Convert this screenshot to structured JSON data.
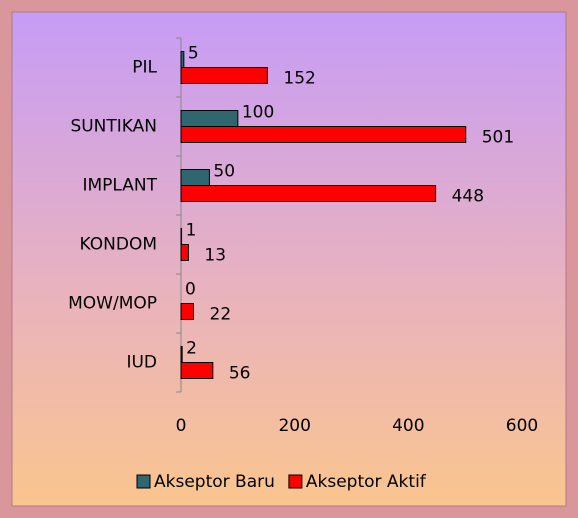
{
  "chart_data": {
    "type": "bar",
    "orientation": "horizontal",
    "categories": [
      "PIL",
      "SUNTIKAN",
      "IMPLANT",
      "KONDOM",
      "MOW/MOP",
      "IUD"
    ],
    "series": [
      {
        "name": "Akseptor Baru",
        "color": "#2f6670",
        "values": [
          5,
          100,
          50,
          1,
          0,
          2
        ]
      },
      {
        "name": "Akseptor Aktif",
        "color": "#ff0000",
        "values": [
          152,
          501,
          448,
          13,
          22,
          56
        ]
      }
    ],
    "xlim": [
      0,
      600
    ],
    "xticks": [
      0,
      200,
      400,
      600
    ],
    "legend": "bottom"
  }
}
